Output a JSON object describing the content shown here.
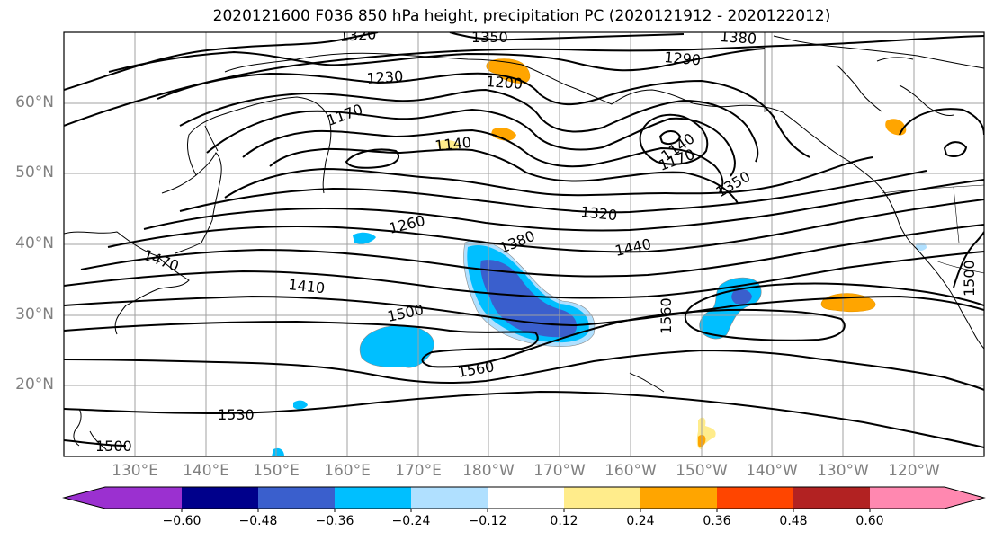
{
  "title": "2020121600 F036 850 hPa height, precipitation PC (2020121912 - 2020122012)",
  "map": {
    "lat_labels": [
      "60°N",
      "50°N",
      "40°N",
      "30°N",
      "20°N"
    ],
    "lon_labels": [
      "130°E",
      "140°E",
      "150°E",
      "160°E",
      "170°E",
      "180°W",
      "170°W",
      "160°W",
      "150°W",
      "140°W",
      "130°W",
      "120°W"
    ],
    "contour_labels": [
      "1320",
      "1350",
      "1380",
      "1290",
      "1230",
      "1200",
      "1170",
      "1140",
      "1140",
      "1170",
      "1350",
      "1320",
      "1260",
      "1380",
      "1440",
      "1470",
      "1410",
      "1500",
      "1560",
      "1560",
      "1530",
      "1500",
      "1500"
    ]
  },
  "colorbar": {
    "colors": [
      "#9b30d0",
      "#00008b",
      "#3a5fcd",
      "#00bfff",
      "#b0e0ff",
      "#ffffff",
      "#ffec8b",
      "#ffa500",
      "#ff4500",
      "#b22222",
      "#ff88b0"
    ],
    "tick_labels": [
      "−0.60",
      "−0.48",
      "−0.36",
      "−0.24",
      "−0.12",
      "0.12",
      "0.24",
      "0.36",
      "0.48",
      "0.60"
    ]
  }
}
